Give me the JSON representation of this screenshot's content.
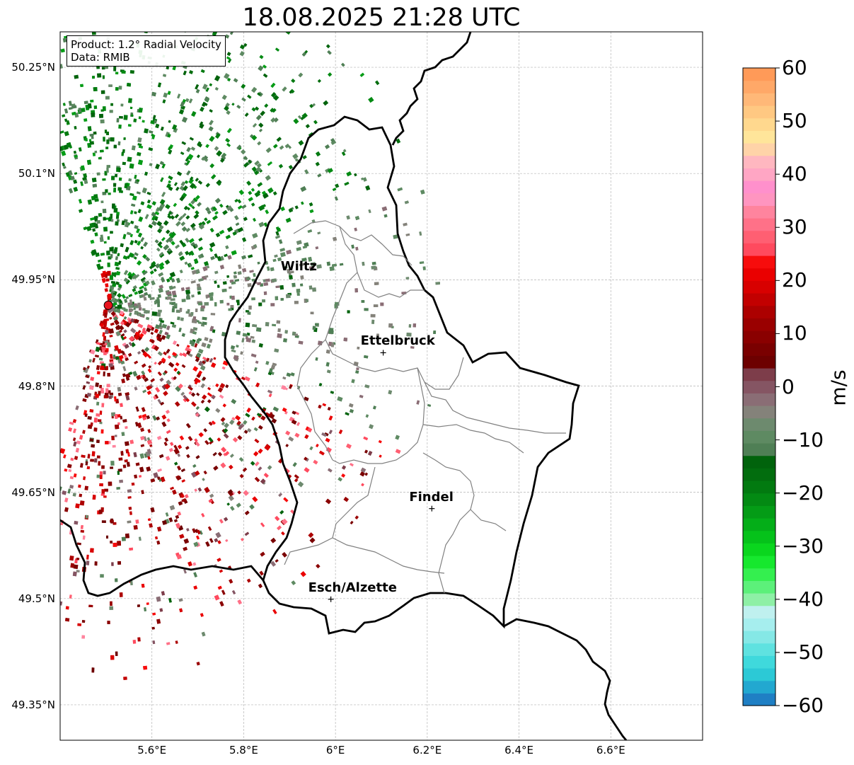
{
  "title": "18.08.2025 21:28 UTC",
  "info": {
    "product": "Product: 1.2° Radial Velocity",
    "source": "Data: RMIB"
  },
  "map": {
    "lon_range": [
      5.4,
      6.8
    ],
    "lat_range": [
      49.3,
      50.3
    ],
    "lat_ticks": [
      {
        "value": 50.25,
        "label": "50.25°N"
      },
      {
        "value": 50.1,
        "label": "50.1°N"
      },
      {
        "value": 49.95,
        "label": "49.95°N"
      },
      {
        "value": 49.8,
        "label": "49.8°N"
      },
      {
        "value": 49.65,
        "label": "49.65°N"
      },
      {
        "value": 49.5,
        "label": "49.5°N"
      },
      {
        "value": 49.35,
        "label": "49.35°N"
      }
    ],
    "lon_ticks": [
      {
        "value": 5.6,
        "label": "5.6°E"
      },
      {
        "value": 5.8,
        "label": "5.8°E"
      },
      {
        "value": 6.0,
        "label": "6°E"
      },
      {
        "value": 6.2,
        "label": "6.2°E"
      },
      {
        "value": 6.4,
        "label": "6.4°E"
      },
      {
        "value": 6.6,
        "label": "6.6°E"
      }
    ],
    "radar_site": {
      "lon": 5.505,
      "lat": 49.914,
      "color": "#e8141e"
    },
    "cities": [
      {
        "name": "Wiltz",
        "lon": 5.93,
        "lat": 49.966,
        "marker": false
      },
      {
        "name": "Ettelbruck",
        "lon": 6.104,
        "lat": 49.847,
        "marker": true
      },
      {
        "name": "Findel",
        "lon": 6.21,
        "lat": 49.627,
        "marker": true
      },
      {
        "name": "Esch/Alzette",
        "lon": 5.99,
        "lat": 49.499,
        "marker": true
      }
    ]
  },
  "colorbar": {
    "unit": "m/s",
    "vmin": -60,
    "vmax": 60,
    "ticks": [
      {
        "value": 60,
        "label": "60"
      },
      {
        "value": 50,
        "label": "50"
      },
      {
        "value": 40,
        "label": "40"
      },
      {
        "value": 30,
        "label": "30"
      },
      {
        "value": 20,
        "label": "20"
      },
      {
        "value": 10,
        "label": "10"
      },
      {
        "value": 0,
        "label": "0"
      },
      {
        "value": -10,
        "label": "−10"
      },
      {
        "value": -20,
        "label": "−20"
      },
      {
        "value": -30,
        "label": "−30"
      },
      {
        "value": -40,
        "label": "−40"
      },
      {
        "value": -50,
        "label": "−50"
      },
      {
        "value": -60,
        "label": "−60"
      }
    ],
    "colors": [
      "#1f7fc4",
      "#22a8d0",
      "#2cc9d6",
      "#3fd9dc",
      "#5fe2e0",
      "#85e8e6",
      "#a6eeee",
      "#bff0ef",
      "#8ef0a6",
      "#5cf07a",
      "#34ef4f",
      "#16e82e",
      "#0ad61e",
      "#05c21a",
      "#04ae18",
      "#049c16",
      "#038a13",
      "#027a10",
      "#026d0e",
      "#01630c",
      "#4f7f55",
      "#5e8a62",
      "#6d8a6e",
      "#84827a",
      "#8a6d75",
      "#855563",
      "#7d3d4a",
      "#6d0000",
      "#7a0000",
      "#8a0000",
      "#9a0000",
      "#ac0000",
      "#c20000",
      "#d80000",
      "#ea0000",
      "#f70c0c",
      "#ff4a5e",
      "#ff5f72",
      "#ff7188",
      "#ff849e",
      "#ff95c0",
      "#ff90cc",
      "#ffa6c4",
      "#ffb7c0",
      "#ffd3a8",
      "#ffe59a",
      "#ffd88e",
      "#ffc882",
      "#ffb878",
      "#ffa868",
      "#ff9a58"
    ]
  }
}
